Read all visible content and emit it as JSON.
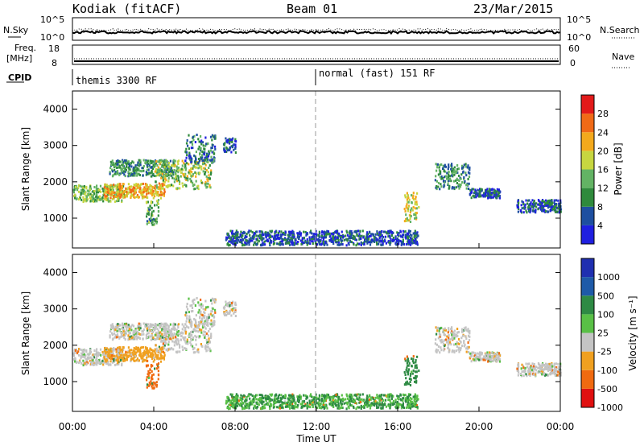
{
  "header": {
    "radar": "Kodiak (fitACF)",
    "beam": "Beam 01",
    "date": "23/Mar/2015"
  },
  "noise_panel": {
    "left_label": "N.Sky",
    "right_label": "N.Search",
    "left_ticks": [
      "10^5",
      "10^0"
    ],
    "right_ticks": [
      "10^5",
      "10^0"
    ]
  },
  "freq_panel": {
    "left_label_line1": "Freq.",
    "left_label_line2": "[MHz]",
    "left_ticks": [
      "18",
      "8"
    ],
    "right_label": "Nave",
    "right_ticks": [
      "60",
      "0"
    ]
  },
  "cpid_panel": {
    "label": "CPID",
    "segments": [
      "themis 3300 RF",
      "normal (fast) 151 RF"
    ]
  },
  "x_axis": {
    "label": "Time UT",
    "ticks": [
      "00:00",
      "04:00",
      "08:00",
      "12:00",
      "16:00",
      "20:00",
      "00:00"
    ]
  },
  "power_panel": {
    "ylabel": "Slant Range [km]",
    "y_ticks": [
      "1000",
      "2000",
      "3000",
      "4000"
    ],
    "colorbar_label": "Power [dB]",
    "colorbar_ticks": [
      "4",
      "8",
      "12",
      "16",
      "20",
      "24",
      "28"
    ],
    "colors": [
      "#1f1fe0",
      "#1e4fa0",
      "#2f8a3c",
      "#63b364",
      "#c7d640",
      "#f3a91d",
      "#f06a17",
      "#e21a1a"
    ]
  },
  "velocity_panel": {
    "ylabel": "Slant Range [km]",
    "y_ticks": [
      "1000",
      "2000",
      "3000",
      "4000"
    ],
    "colorbar_label": "Velocity [m s⁻¹]",
    "colorbar_ticks": [
      "1000",
      "500",
      "100",
      "25",
      "-25",
      "-100",
      "-500",
      "-1000"
    ],
    "colors": [
      "#1f2fb0",
      "#1e5aa8",
      "#2e8a44",
      "#59c046",
      "#c4c4c4",
      "#f0a020",
      "#f06a10",
      "#e01010"
    ]
  },
  "chart_data": {
    "type": "heatmap",
    "x_range_hours": [
      0,
      24
    ],
    "y_range_km": [
      180,
      4500
    ],
    "clusters": [
      {
        "t0": 0.0,
        "t1": 2.5,
        "r0": 1450,
        "r1": 1900,
        "power_db": 14,
        "velocity": 0
      },
      {
        "t0": 1.5,
        "t1": 4.5,
        "r0": 1550,
        "r1": 1950,
        "power_db": 22,
        "velocity": -50
      },
      {
        "t0": 1.8,
        "t1": 5.0,
        "r0": 2150,
        "r1": 2600,
        "power_db": 10,
        "velocity": 0
      },
      {
        "t0": 4.0,
        "t1": 6.8,
        "r0": 1800,
        "r1": 2600,
        "power_db": 16,
        "velocity": 0
      },
      {
        "t0": 5.5,
        "t1": 7.0,
        "r0": 2500,
        "r1": 3300,
        "power_db": 8,
        "velocity": 0
      },
      {
        "t0": 3.6,
        "t1": 4.2,
        "r0": 800,
        "r1": 1500,
        "power_db": 12,
        "velocity": -300
      },
      {
        "t0": 7.4,
        "t1": 8.0,
        "r0": 2800,
        "r1": 3200,
        "power_db": 6,
        "velocity": 0
      },
      {
        "t0": 16.3,
        "t1": 17.0,
        "r0": 900,
        "r1": 1700,
        "power_db": 18,
        "velocity": 200
      },
      {
        "t0": 17.8,
        "t1": 19.5,
        "r0": 1800,
        "r1": 2500,
        "power_db": 10,
        "velocity": 0
      },
      {
        "t0": 19.5,
        "t1": 21.0,
        "r0": 1550,
        "r1": 1800,
        "power_db": 6,
        "velocity": 0
      },
      {
        "t0": 21.8,
        "t1": 24.0,
        "r0": 1150,
        "r1": 1500,
        "power_db": 6,
        "velocity": 0
      },
      {
        "t0": 7.5,
        "t1": 17.0,
        "r0": 250,
        "r1": 650,
        "power_db": 6,
        "velocity": 100
      }
    ]
  }
}
